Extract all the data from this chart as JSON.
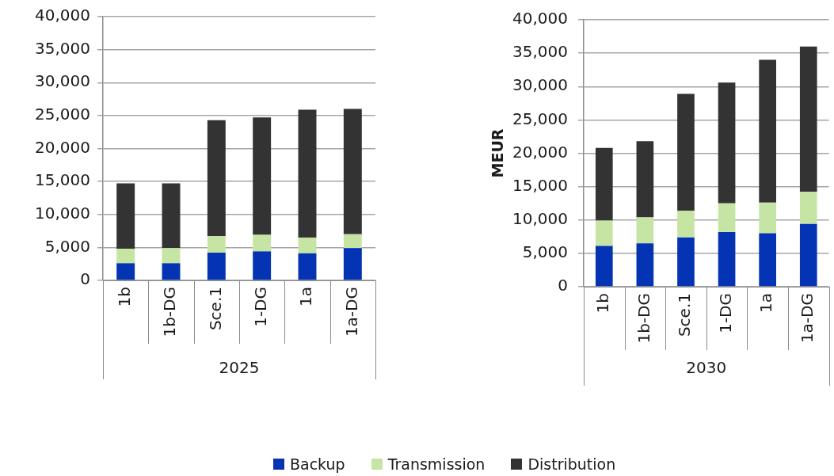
{
  "chart_data": [
    {
      "type": "bar",
      "categories": [
        "1b",
        "1b-DG",
        "Sce.1",
        "1-DG",
        "1a",
        "1a-DG"
      ],
      "xlabel": "2025",
      "stacked": true,
      "series": [
        {
          "name": "Backup",
          "color": "#0433b3",
          "values": [
            2600,
            2600,
            4200,
            4400,
            4100,
            4900
          ]
        },
        {
          "name": "Transmission",
          "color": "#c6e5a4",
          "values": [
            2200,
            2300,
            2500,
            2500,
            2400,
            2100
          ]
        },
        {
          "name": "Distribution",
          "color": "#333333",
          "values": [
            9900,
            9800,
            17600,
            17800,
            19400,
            19000
          ]
        }
      ],
      "ylim": [
        0,
        40000
      ],
      "yticks": [
        0,
        {
          "value": 5000,
          "label": "5,000"
        },
        {
          "value": 10000,
          "label": "10,000"
        },
        {
          "value": 15000,
          "label": "15,000"
        },
        {
          "value": 20000,
          "label": "20,000"
        },
        {
          "value": 25000,
          "label": "25,000"
        },
        {
          "value": 30000,
          "label": "30,000"
        },
        {
          "value": 35000,
          "label": "35,000"
        },
        {
          "value": 40000,
          "label": "40,000"
        }
      ],
      "grid": "y",
      "legend": "bottom"
    },
    {
      "type": "bar",
      "categories": [
        "1b",
        "1b-DG",
        "Sce.1",
        "1-DG",
        "1a",
        "1a-DG"
      ],
      "xlabel": "2030",
      "ylabel": "MEUR",
      "stacked": true,
      "series": [
        {
          "color": "#0433b3",
          "values": [
            6100,
            6500,
            7400,
            8200,
            8000,
            9400
          ]
        },
        {
          "color": "#c6e5a4",
          "values": [
            3800,
            3900,
            4000,
            4300,
            4600,
            4800
          ]
        },
        {
          "color": "#333333",
          "values": [
            10900,
            11400,
            17500,
            18100,
            21400,
            21800
          ]
        }
      ],
      "ylim": [
        0,
        40000
      ],
      "yticks": [
        0,
        {
          "value": 5000,
          "label": "5,000"
        },
        {
          "value": 10000,
          "label": "10,000"
        },
        {
          "value": 15000,
          "label": "15,000"
        },
        {
          "value": 20000,
          "label": "20,000"
        },
        {
          "value": 25000,
          "label": "25,000"
        },
        {
          "value": 30000,
          "label": "30,000"
        },
        {
          "value": 35000,
          "label": "35,000"
        },
        {
          "value": 40000,
          "label": "40,000"
        }
      ],
      "grid": "y"
    }
  ]
}
